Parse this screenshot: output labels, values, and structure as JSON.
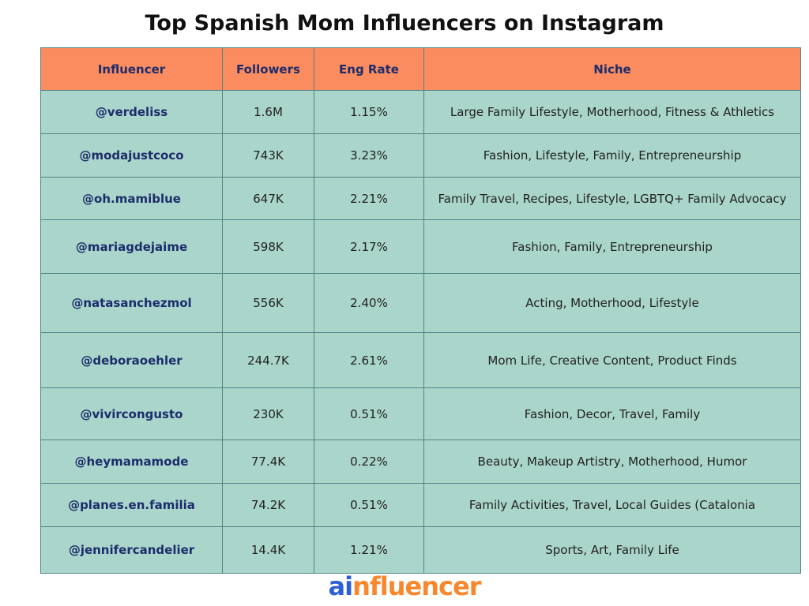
{
  "title": "Top Spanish Mom Influencers on Instagram",
  "table": {
    "header": [
      "Influencer",
      "Followers",
      "Eng Rate",
      "Niche"
    ],
    "rows": [
      [
        "@verdeliss",
        "1.6M",
        "1.15%",
        "Large Family Lifestyle, Motherhood, Fitness & Athletics"
      ],
      [
        "@modajustcoco",
        "743K",
        "3.23%",
        "Fashion, Lifestyle, Family, Entrepreneurship"
      ],
      [
        "@oh.mamiblue",
        "647K",
        "2.21%",
        "Family Travel, Recipes, Lifestyle, LGBTQ+ Family Advocacy"
      ],
      [
        "@mariagdejaime",
        "598K",
        "2.17%",
        "Fashion, Family, Entrepreneurship"
      ],
      [
        "@natasanchezmol",
        "556K",
        "2.40%",
        "Acting, Motherhood, Lifestyle"
      ],
      [
        "@deboraoehler",
        "244.7K",
        "2.61%",
        "Mom Life, Creative Content, Product Finds"
      ],
      [
        "@vivircongusto",
        "230K",
        "0.51%",
        "Fashion, Decor, Travel, Family"
      ],
      [
        "@heymamamode",
        "77.4K",
        "0.22%",
        "Beauty, Makeup Artistry, Motherhood, Humor"
      ],
      [
        "@planes.en.familia",
        "74.2K",
        "0.51%",
        "Family Activities, Travel, Local Guides (Catalonia"
      ],
      [
        "@jennifercandelier",
        "14.4K",
        "1.21%",
        "Sports, Art, Family Life"
      ]
    ]
  },
  "logo": [
    "ai",
    "nfluencer"
  ]
}
